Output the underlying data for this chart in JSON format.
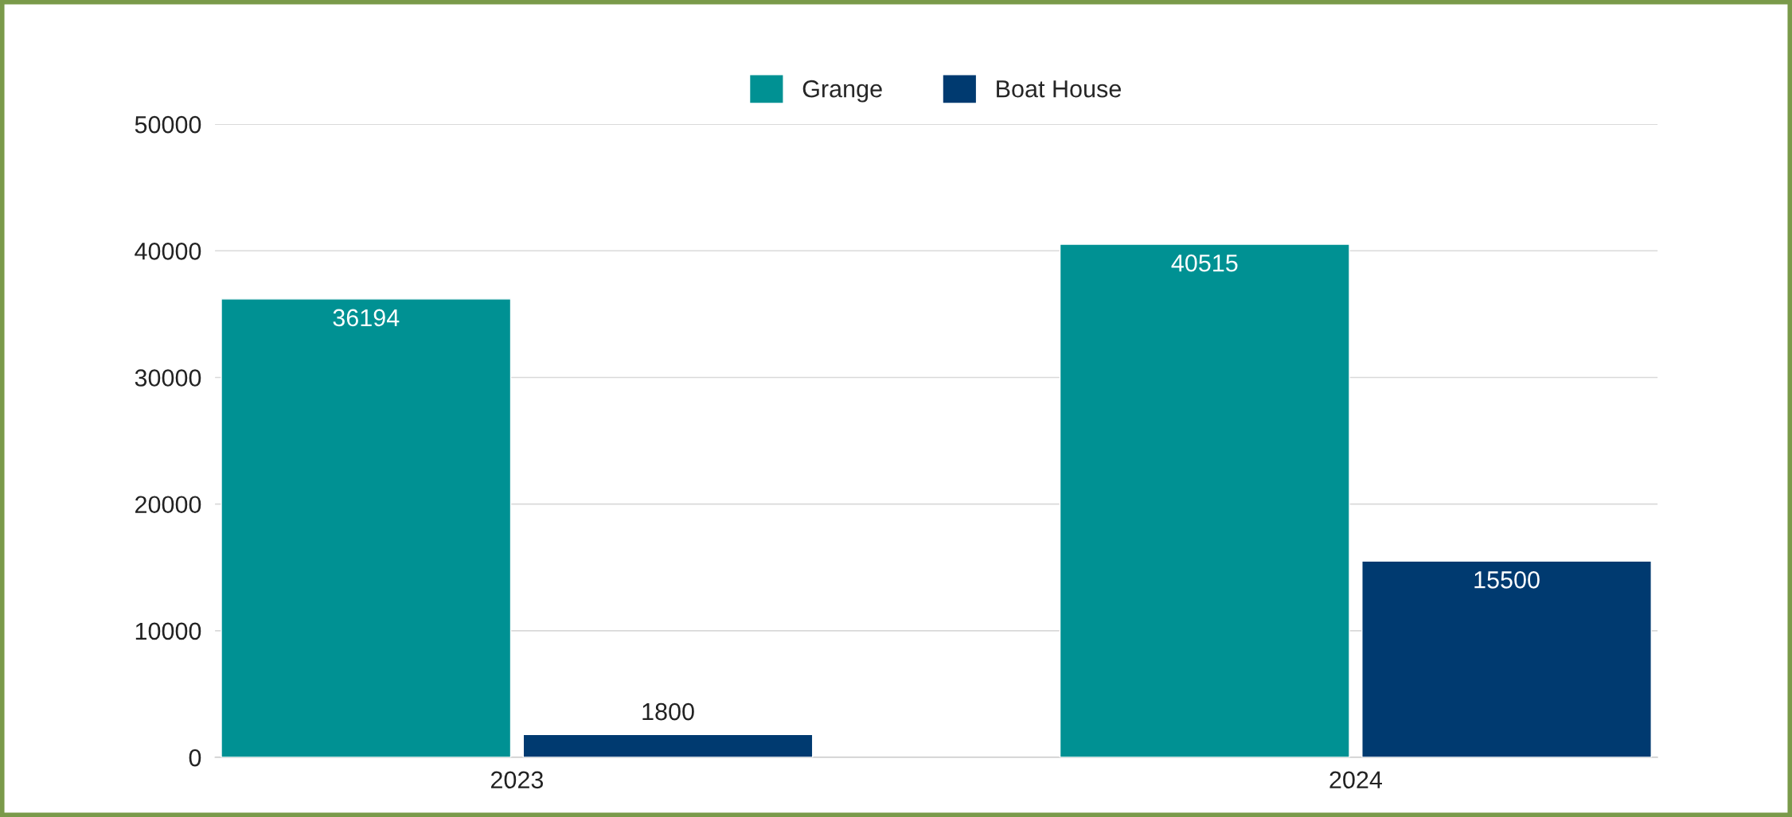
{
  "chart_data": {
    "type": "bar",
    "categories": [
      "2023",
      "2024"
    ],
    "series": [
      {
        "name": "Grange",
        "color": "#009193",
        "values": [
          36194,
          40515
        ]
      },
      {
        "name": "Boat House",
        "color": "#003a70",
        "values": [
          1800,
          15500
        ]
      }
    ],
    "ylim": [
      0,
      50000
    ],
    "yticks": [
      0,
      10000,
      20000,
      30000,
      40000,
      50000
    ],
    "grid": "y",
    "legend": "top",
    "data_labels": true
  }
}
